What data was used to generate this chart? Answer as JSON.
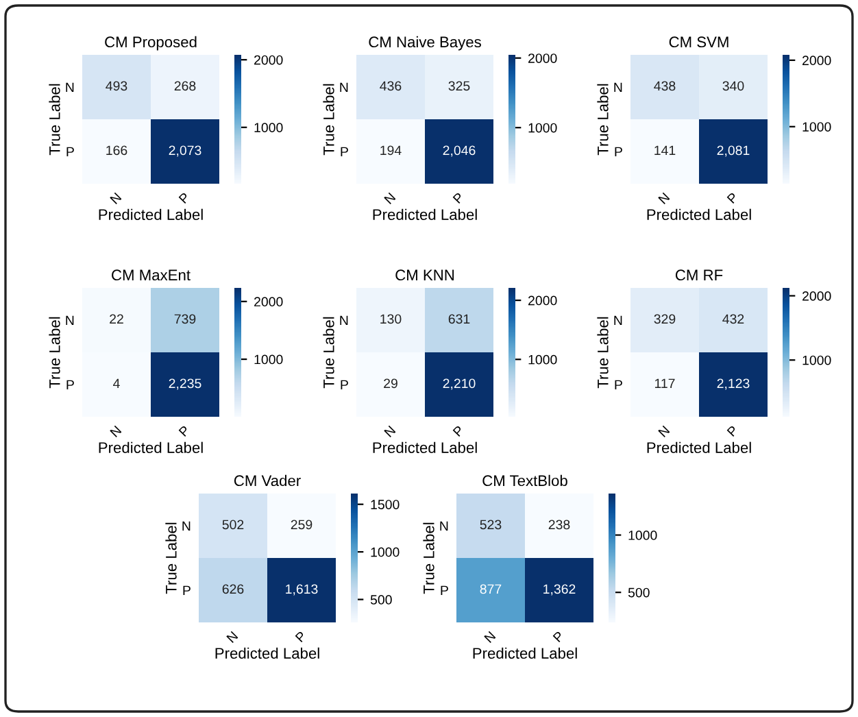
{
  "chart_data": [
    {
      "type": "heatmap",
      "title": "CM Proposed",
      "xlabel": "Predicted Label",
      "ylabel": "True Label",
      "categories": [
        "N",
        "P"
      ],
      "y_categories": [
        "N",
        "P"
      ],
      "cells": [
        [
          493,
          268
        ],
        [
          166,
          2073
        ]
      ],
      "cell_labels": [
        [
          "493",
          "268"
        ],
        [
          "166",
          "2,073"
        ]
      ],
      "clim": [
        166,
        2073
      ],
      "cticks": [
        1000,
        2000
      ]
    },
    {
      "type": "heatmap",
      "title": "CM Naive Bayes",
      "xlabel": "Predicted Label",
      "ylabel": "True Label",
      "categories": [
        "N",
        "P"
      ],
      "y_categories": [
        "N",
        "P"
      ],
      "cells": [
        [
          436,
          325
        ],
        [
          194,
          2046
        ]
      ],
      "cell_labels": [
        [
          "436",
          "325"
        ],
        [
          "194",
          "2,046"
        ]
      ],
      "clim": [
        194,
        2046
      ],
      "cticks": [
        1000,
        2000
      ]
    },
    {
      "type": "heatmap",
      "title": "CM SVM",
      "xlabel": "Predicted Label",
      "ylabel": "True Label",
      "categories": [
        "N",
        "P"
      ],
      "y_categories": [
        "N",
        "P"
      ],
      "cells": [
        [
          438,
          340
        ],
        [
          141,
          2081
        ]
      ],
      "cell_labels": [
        [
          "438",
          "340"
        ],
        [
          "141",
          "2,081"
        ]
      ],
      "clim": [
        141,
        2081
      ],
      "cticks": [
        1000,
        2000
      ]
    },
    {
      "type": "heatmap",
      "title": "CM MaxEnt",
      "xlabel": "Predicted Label",
      "ylabel": "True Label",
      "categories": [
        "N",
        "P"
      ],
      "y_categories": [
        "N",
        "P"
      ],
      "cells": [
        [
          22,
          739
        ],
        [
          4,
          2235
        ]
      ],
      "cell_labels": [
        [
          "22",
          "739"
        ],
        [
          "4",
          "2,235"
        ]
      ],
      "clim": [
        4,
        2235
      ],
      "cticks": [
        1000,
        2000
      ]
    },
    {
      "type": "heatmap",
      "title": "CM KNN",
      "xlabel": "Predicted Label",
      "ylabel": "True Label",
      "categories": [
        "N",
        "P"
      ],
      "y_categories": [
        "N",
        "P"
      ],
      "cells": [
        [
          130,
          631
        ],
        [
          29,
          2210
        ]
      ],
      "cell_labels": [
        [
          "130",
          "631"
        ],
        [
          "29",
          "2,210"
        ]
      ],
      "clim": [
        29,
        2210
      ],
      "cticks": [
        1000,
        2000
      ]
    },
    {
      "type": "heatmap",
      "title": "CM RF",
      "xlabel": "Predicted Label",
      "ylabel": "True Label",
      "categories": [
        "N",
        "P"
      ],
      "y_categories": [
        "N",
        "P"
      ],
      "cells": [
        [
          329,
          432
        ],
        [
          117,
          2123
        ]
      ],
      "cell_labels": [
        [
          "329",
          "432"
        ],
        [
          "117",
          "2,123"
        ]
      ],
      "clim": [
        117,
        2123
      ],
      "cticks": [
        1000,
        2000
      ]
    },
    {
      "type": "heatmap",
      "title": "CM Vader",
      "xlabel": "Predicted Label",
      "ylabel": "True Label",
      "categories": [
        "N",
        "P"
      ],
      "y_categories": [
        "N",
        "P"
      ],
      "cells": [
        [
          502,
          259
        ],
        [
          626,
          1613
        ]
      ],
      "cell_labels": [
        [
          "502",
          "259"
        ],
        [
          "626",
          "1,613"
        ]
      ],
      "clim": [
        259,
        1613
      ],
      "cticks": [
        500,
        1000,
        1500
      ]
    },
    {
      "type": "heatmap",
      "title": "CM TextBlob",
      "xlabel": "Predicted Label",
      "ylabel": "True Label",
      "categories": [
        "N",
        "P"
      ],
      "y_categories": [
        "N",
        "P"
      ],
      "cells": [
        [
          523,
          238
        ],
        [
          877,
          1362
        ]
      ],
      "cell_labels": [
        [
          "523",
          "238"
        ],
        [
          "877",
          "1,362"
        ]
      ],
      "clim": [
        238,
        1362
      ],
      "cticks": [
        500,
        1000
      ]
    }
  ]
}
